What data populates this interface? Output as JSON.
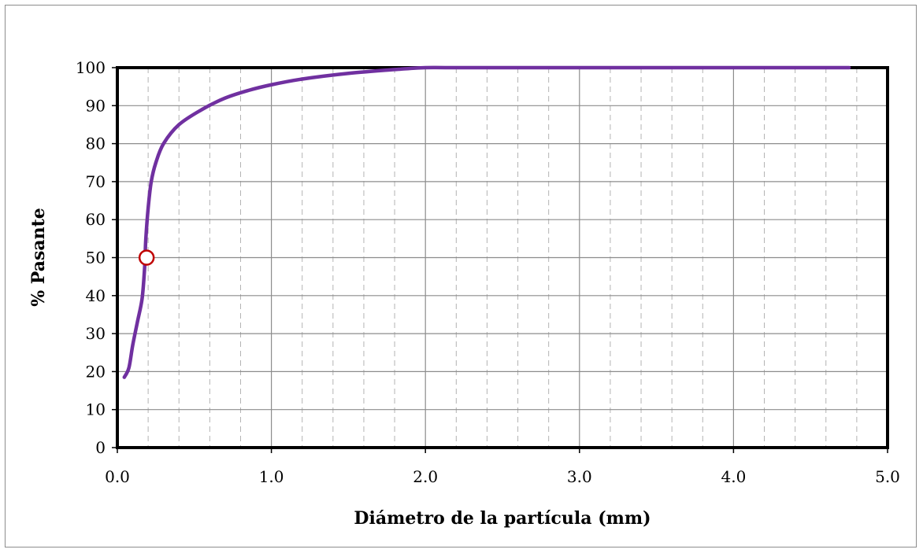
{
  "chart_data": {
    "type": "line",
    "title": "",
    "xlabel": "Diámetro de la partícula (mm)",
    "ylabel": "% Pasante",
    "xlim": [
      0,
      5
    ],
    "ylim": [
      0,
      100
    ],
    "x_ticks": [
      "0.0",
      "1.0",
      "2.0",
      "3.0",
      "4.0",
      "5.0"
    ],
    "y_ticks": [
      "0",
      "10",
      "20",
      "30",
      "40",
      "50",
      "60",
      "70",
      "80",
      "90",
      "100"
    ],
    "x_tick_values": [
      0,
      1,
      2,
      3,
      4,
      5
    ],
    "y_tick_values": [
      0,
      10,
      20,
      30,
      40,
      50,
      60,
      70,
      80,
      90,
      100
    ],
    "x_minor_step": 0.2,
    "grid": true,
    "series": [
      {
        "color": "#7030a0",
        "x": [
          0.045,
          0.075,
          0.1,
          0.13,
          0.16,
          0.175,
          0.18,
          0.185,
          0.2,
          0.22,
          0.25,
          0.3,
          0.4,
          0.55,
          0.7,
          0.85,
          1.0,
          1.2,
          1.5,
          1.8,
          2.0,
          2.2,
          3.0,
          4.0,
          4.75
        ],
        "y": [
          18.5,
          21,
          27,
          33,
          39,
          46,
          50,
          55,
          63,
          70,
          75,
          80,
          85,
          89,
          92,
          94,
          95.5,
          97,
          98.5,
          99.5,
          100,
          100,
          100,
          100,
          100
        ]
      }
    ],
    "markers": [
      {
        "x": 0.19,
        "y": 50,
        "color": "#c00000"
      }
    ]
  }
}
